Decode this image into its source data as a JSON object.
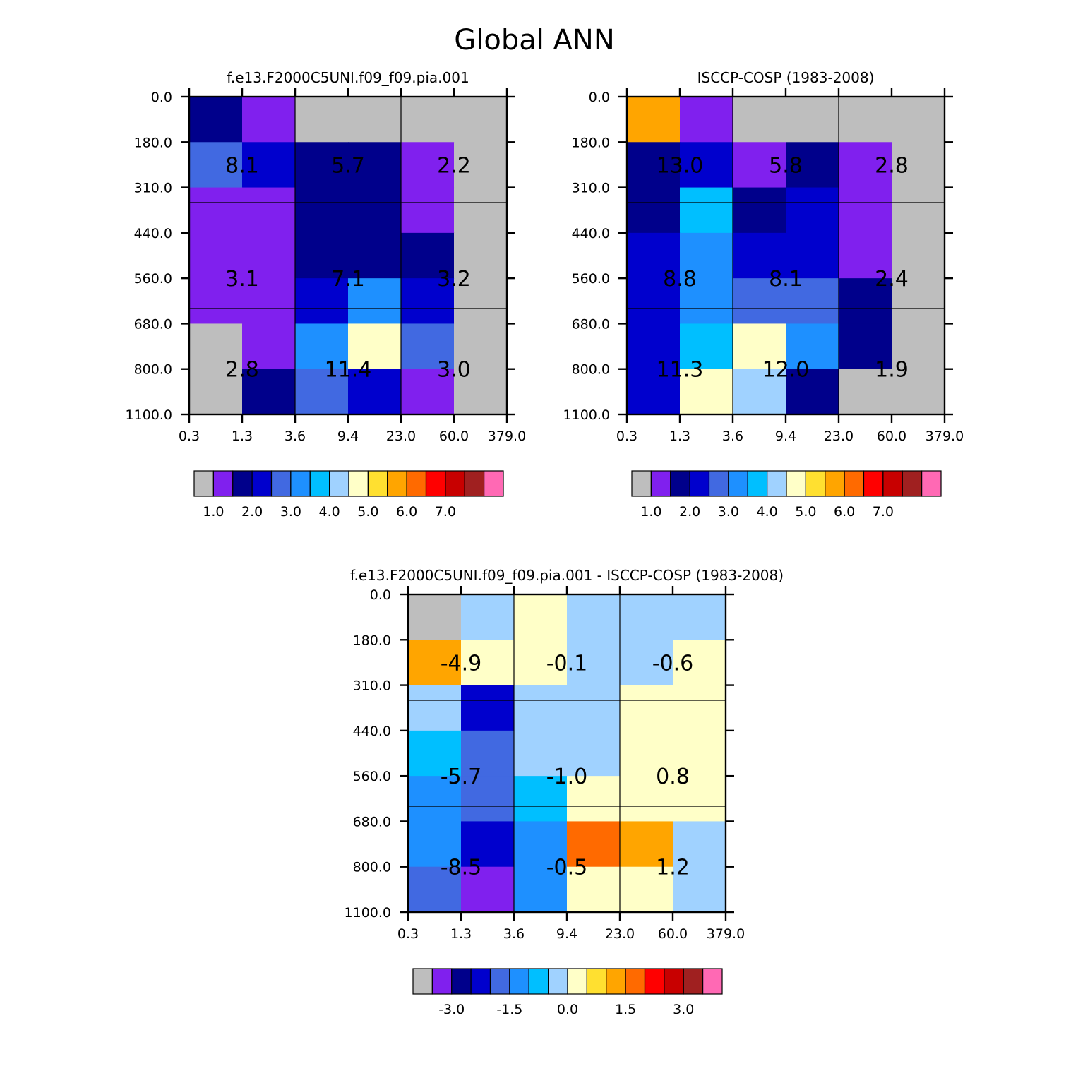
{
  "page_title": "Global ANN",
  "colors": {
    "abs": [
      "#bebebe",
      "#8020ee",
      "#00008b",
      "#0000cd",
      "#4169e1",
      "#1e90ff",
      "#00bfff",
      "#a0d2ff",
      "#ffffc8",
      "#ffe030",
      "#ffa500",
      "#ff6a00",
      "#ff0000",
      "#c80000",
      "#a02020",
      "#ff69b4"
    ],
    "diff": [
      "#bebebe",
      "#8020ee",
      "#00008b",
      "#0000cd",
      "#4169e1",
      "#1e90ff",
      "#00bfff",
      "#a0d2ff",
      "#ffffc8",
      "#ffe030",
      "#ffa500",
      "#ff6a00",
      "#ff0000",
      "#c80000",
      "#a02020",
      "#ff69b4"
    ]
  },
  "chart_data": [
    {
      "type": "heatmap",
      "title": "f.e13.F2000C5UNI.f09_f09.pia.001",
      "x_ticks": [
        "0.3",
        "1.3",
        "3.6",
        "9.4",
        "23.0",
        "60.0",
        "379.0"
      ],
      "y_ticks": [
        "0.0",
        "180.0",
        "310.0",
        "440.0",
        "560.0",
        "680.0",
        "800.0",
        "1100.0"
      ],
      "cells": [
        [
          2,
          1,
          0,
          0,
          0,
          0
        ],
        [
          4,
          3,
          2,
          2,
          1,
          0
        ],
        [
          1,
          1,
          2,
          2,
          1,
          0
        ],
        [
          1,
          1,
          2,
          2,
          2,
          0
        ],
        [
          1,
          1,
          3,
          5,
          3,
          0
        ],
        [
          0,
          1,
          5,
          8,
          4,
          0
        ],
        [
          0,
          2,
          4,
          3,
          1,
          0
        ]
      ],
      "block_labels": [
        [
          "8.1",
          "5.7",
          "2.2"
        ],
        [
          "3.1",
          "7.1",
          "3.2"
        ],
        [
          "2.8",
          "11.4",
          "3.0"
        ]
      ],
      "colorbar_labels": [
        "1.0",
        "2.0",
        "3.0",
        "4.0",
        "5.0",
        "6.0",
        "7.0"
      ]
    },
    {
      "type": "heatmap",
      "title": "ISCCP-COSP (1983-2008)",
      "x_ticks": [
        "0.3",
        "1.3",
        "3.6",
        "9.4",
        "23.0",
        "60.0",
        "379.0"
      ],
      "y_ticks": [
        "0.0",
        "180.0",
        "310.0",
        "440.0",
        "560.0",
        "680.0",
        "800.0",
        "1100.0"
      ],
      "cells": [
        [
          10,
          1,
          0,
          0,
          0,
          0
        ],
        [
          2,
          3,
          1,
          2,
          1,
          0
        ],
        [
          2,
          6,
          2,
          3,
          1,
          0
        ],
        [
          3,
          5,
          3,
          3,
          1,
          0
        ],
        [
          3,
          5,
          4,
          4,
          2,
          0
        ],
        [
          3,
          6,
          8,
          5,
          2,
          0
        ],
        [
          3,
          8,
          7,
          2,
          0,
          0
        ]
      ],
      "block_labels": [
        [
          "13.0",
          "5.8",
          "2.8"
        ],
        [
          "8.8",
          "8.1",
          "2.4"
        ],
        [
          "11.3",
          "12.0",
          "1.9"
        ]
      ],
      "colorbar_labels": [
        "1.0",
        "2.0",
        "3.0",
        "4.0",
        "5.0",
        "6.0",
        "7.0"
      ]
    },
    {
      "type": "heatmap",
      "title": "f.e13.F2000C5UNI.f09_f09.pia.001 - ISCCP-COSP (1983-2008)",
      "x_ticks": [
        "0.3",
        "1.3",
        "3.6",
        "9.4",
        "23.0",
        "60.0",
        "379.0"
      ],
      "y_ticks": [
        "0.0",
        "180.0",
        "310.0",
        "440.0",
        "560.0",
        "680.0",
        "800.0",
        "1100.0"
      ],
      "cells": [
        [
          0,
          7,
          8,
          7,
          7,
          7
        ],
        [
          10,
          8,
          8,
          7,
          7,
          8
        ],
        [
          7,
          3,
          7,
          7,
          8,
          8
        ],
        [
          6,
          4,
          7,
          7,
          8,
          8
        ],
        [
          5,
          4,
          6,
          8,
          8,
          8
        ],
        [
          5,
          3,
          5,
          11,
          10,
          7
        ],
        [
          4,
          1,
          5,
          8,
          8,
          7
        ]
      ],
      "block_labels": [
        [
          "-4.9",
          "-0.1",
          "-0.6"
        ],
        [
          "-5.7",
          "-1.0",
          "0.8"
        ],
        [
          "-8.5",
          "-0.5",
          "1.2"
        ]
      ],
      "colorbar_labels": [
        "-3.0",
        "-1.5",
        "0.0",
        "1.5",
        "3.0"
      ]
    }
  ]
}
